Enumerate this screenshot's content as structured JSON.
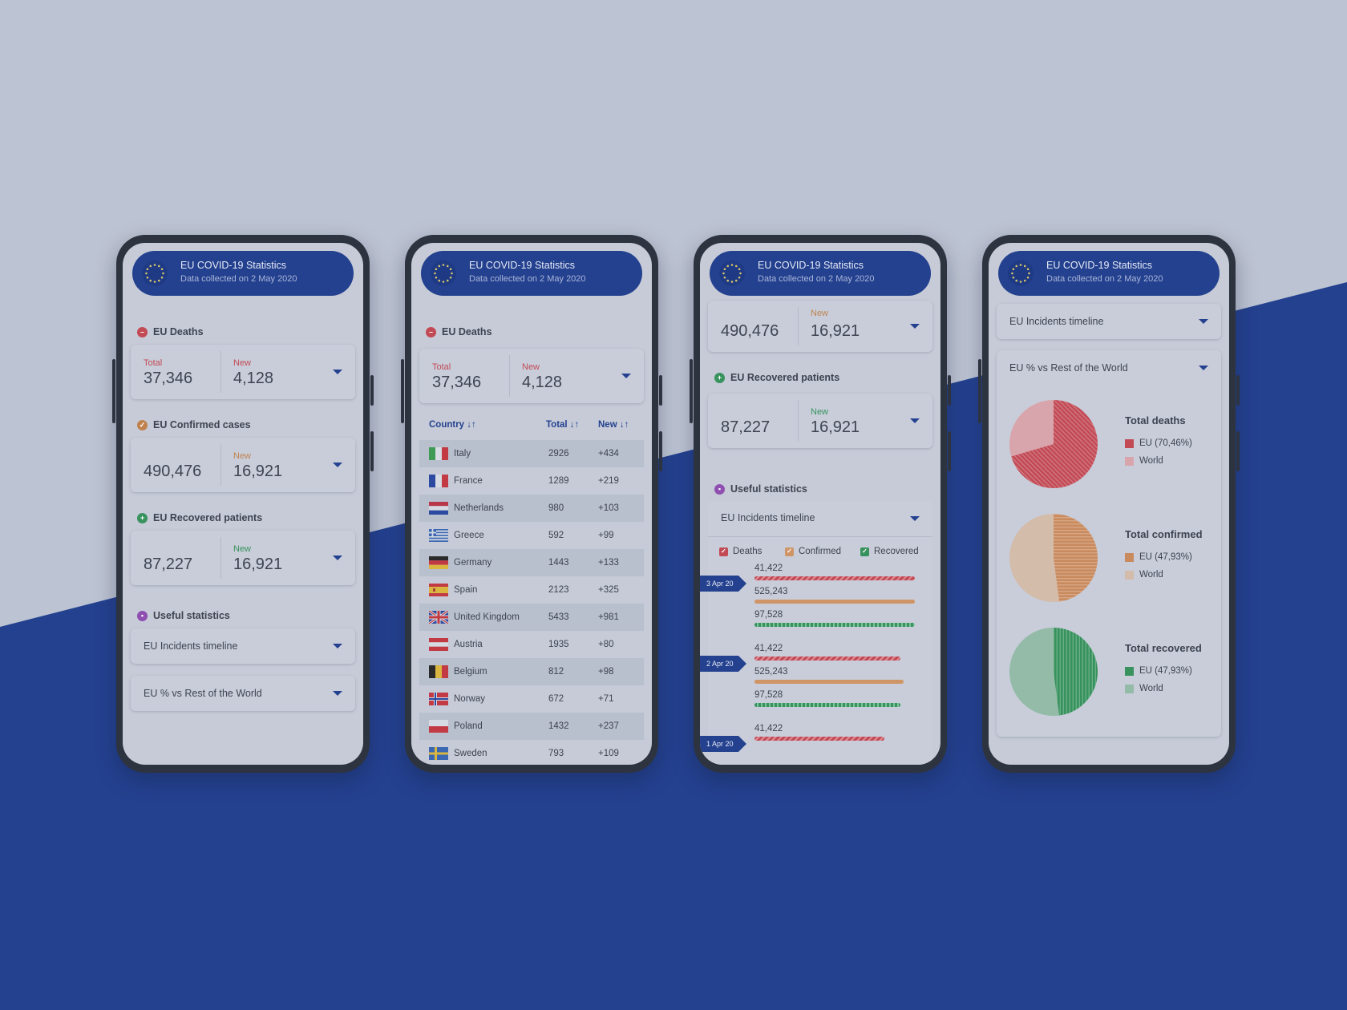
{
  "app": {
    "title": "EU COVID-19 Statistics",
    "subtitle": "Data collected on 2 May 2020"
  },
  "colors": {
    "brand": "#24418f",
    "deaths": "#c24a55",
    "confirmed": "#cf9566",
    "recovered": "#37925d",
    "stats": "#8e4fb0"
  },
  "labels": {
    "eu_deaths": "EU Deaths",
    "eu_confirmed": "EU Confirmed cases",
    "eu_recovered": "EU Recovered patients",
    "useful_stats": "Useful statistics",
    "total": "Total",
    "new": "New",
    "timeline": "EU Incidents timeline",
    "eu_vs_world": "EU % vs Rest of the World"
  },
  "stats": {
    "deaths": {
      "total": "37,346",
      "new": "4,128"
    },
    "confirmed": {
      "total": "490,476",
      "new": "16,921"
    },
    "recovered": {
      "total": "87,227",
      "new": "16,921"
    }
  },
  "table": {
    "headers": [
      "Country ↓↑",
      "Total ↓↑",
      "New ↓↑"
    ],
    "rows": [
      {
        "country": "Italy",
        "total": "2926",
        "new": "+434",
        "flag": "italy-flag-icon"
      },
      {
        "country": "France",
        "total": "1289",
        "new": "+219",
        "flag": "france-flag-icon"
      },
      {
        "country": "Netherlands",
        "total": "980",
        "new": "+103",
        "flag": "netherlands-flag-icon"
      },
      {
        "country": "Greece",
        "total": "592",
        "new": "+99",
        "flag": "greece-flag-icon"
      },
      {
        "country": "Germany",
        "total": "1443",
        "new": "+133",
        "flag": "germany-flag-icon"
      },
      {
        "country": "Spain",
        "total": "2123",
        "new": "+325",
        "flag": "spain-flag-icon"
      },
      {
        "country": "United Kingdom",
        "total": "5433",
        "new": "+981",
        "flag": "uk-flag-icon"
      },
      {
        "country": "Austria",
        "total": "1935",
        "new": "+80",
        "flag": "austria-flag-icon"
      },
      {
        "country": "Belgium",
        "total": "812",
        "new": "+98",
        "flag": "belgium-flag-icon"
      },
      {
        "country": "Norway",
        "total": "672",
        "new": "+71",
        "flag": "norway-flag-icon"
      },
      {
        "country": "Poland",
        "total": "1432",
        "new": "+237",
        "flag": "poland-flag-icon"
      },
      {
        "country": "Sweden",
        "total": "793",
        "new": "+109",
        "flag": "sweden-flag-icon"
      }
    ]
  },
  "timeline": {
    "legend": [
      "Deaths",
      "Confirmed",
      "Recovered"
    ],
    "entries": [
      {
        "date": "3 Apr 20",
        "deaths": "41,422",
        "confirmed": "525,243",
        "recovered": "97,528"
      },
      {
        "date": "2 Apr 20",
        "deaths": "41,422",
        "confirmed": "525,243",
        "recovered": "97,528"
      },
      {
        "date": "1 Apr 20",
        "deaths": "41,422"
      }
    ]
  },
  "pies": [
    {
      "title": "Total deaths",
      "eu_label": "EU (70,46%)",
      "world_label": "World",
      "eu_fraction": 0.7046,
      "eu_color": "#c24a55",
      "world_color": "#d9a5ac"
    },
    {
      "title": "Total confirmed",
      "eu_label": "EU (47,93%)",
      "world_label": "World",
      "eu_fraction": 0.4793,
      "eu_color": "#c98a5e",
      "world_color": "#d3bcaa"
    },
    {
      "title": "Total recovered",
      "eu_label": "EU (47,93%)",
      "world_label": "World",
      "eu_fraction": 0.4793,
      "eu_color": "#37925d",
      "world_color": "#93bba7"
    }
  ]
}
